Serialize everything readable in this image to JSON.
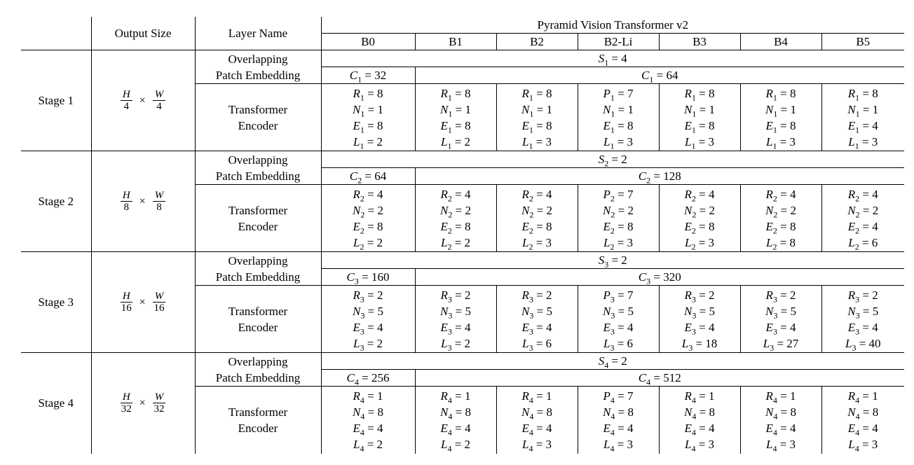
{
  "table": {
    "col_output_size": "Output Size",
    "col_layer_name": "Layer Name",
    "group_title": "Pyramid Vision Transformer v2",
    "models": [
      "B0",
      "B1",
      "B2",
      "B2-Li",
      "B3",
      "B4",
      "B5"
    ],
    "layer_names": {
      "patch": "Overlapping\nPatch Embedding",
      "encoder": "Transformer\nEncoder"
    },
    "stages": [
      {
        "label": "Stage 1",
        "output_size": {
          "num1": "H",
          "den1": "4",
          "op": "×",
          "num2": "W",
          "den2": "4"
        },
        "stride": "S_1 = 4",
        "channels_b0": "C_1 = 32",
        "channels_rest": "C_1 = 64",
        "encoders": [
          [
            "R_1 = 8",
            "N_1 = 1",
            "E_1 = 8",
            "L_1 = 2"
          ],
          [
            "R_1 = 8",
            "N_1 = 1",
            "E_1 = 8",
            "L_1 = 2"
          ],
          [
            "R_1 = 8",
            "N_1 = 1",
            "E_1 = 8",
            "L_1 = 3"
          ],
          [
            "P_1 = 7",
            "N_1 = 1",
            "E_1 = 8",
            "L_1 = 3"
          ],
          [
            "R_1 = 8",
            "N_1 = 1",
            "E_1 = 8",
            "L_1 = 3"
          ],
          [
            "R_1 = 8",
            "N_1 = 1",
            "E_1 = 8",
            "L_1 = 3"
          ],
          [
            "R_1 = 8",
            "N_1 = 1",
            "E_1 = 4",
            "L_1 = 3"
          ]
        ]
      },
      {
        "label": "Stage 2",
        "output_size": {
          "num1": "H",
          "den1": "8",
          "op": "×",
          "num2": "W",
          "den2": "8"
        },
        "stride": "S_2 = 2",
        "channels_b0": "C_2 = 64",
        "channels_rest": "C_2 = 128",
        "encoders": [
          [
            "R_2 = 4",
            "N_2 = 2",
            "E_2 = 8",
            "L_2 = 2"
          ],
          [
            "R_2 = 4",
            "N_2 = 2",
            "E_2 = 8",
            "L_2 = 2"
          ],
          [
            "R_2 = 4",
            "N_2 = 2",
            "E_2 = 8",
            "L_2 = 3"
          ],
          [
            "P_2 = 7",
            "N_2 = 2",
            "E_2 = 8",
            "L_2 = 3"
          ],
          [
            "R_2 = 4",
            "N_2 = 2",
            "E_2 = 8",
            "L_2 = 3"
          ],
          [
            "R_2 = 4",
            "N_2 = 2",
            "E_2 = 8",
            "L_2 = 8"
          ],
          [
            "R_2 = 4",
            "N_2 = 2",
            "E_2 = 4",
            "L_2 = 6"
          ]
        ]
      },
      {
        "label": "Stage 3",
        "output_size": {
          "num1": "H",
          "den1": "16",
          "op": "×",
          "num2": "W",
          "den2": "16"
        },
        "stride": "S_3 = 2",
        "channels_b0": "C_3 = 160",
        "channels_rest": "C_3 = 320",
        "encoders": [
          [
            "R_3 = 2",
            "N_3 = 5",
            "E_3 = 4",
            "L_3 = 2"
          ],
          [
            "R_3 = 2",
            "N_3 = 5",
            "E_3 = 4",
            "L_3 = 2"
          ],
          [
            "R_3 = 2",
            "N_3 = 5",
            "E_3 = 4",
            "L_3 = 6"
          ],
          [
            "P_3 = 7",
            "N_3 = 5",
            "E_3 = 4",
            "L_3 = 6"
          ],
          [
            "R_3 = 2",
            "N_3 = 5",
            "E_3 = 4",
            "L_3 = 18"
          ],
          [
            "R_3 = 2",
            "N_3 = 5",
            "E_3 = 4",
            "L_3 = 27"
          ],
          [
            "R_3 = 2",
            "N_3 = 5",
            "E_3 = 4",
            "L_3 = 40"
          ]
        ]
      },
      {
        "label": "Stage 4",
        "output_size": {
          "num1": "H",
          "den1": "32",
          "op": "×",
          "num2": "W",
          "den2": "32"
        },
        "stride": "S_4 = 2",
        "channels_b0": "C_4 = 256",
        "channels_rest": "C_4 = 512",
        "encoders": [
          [
            "R_4 = 1",
            "N_4 = 8",
            "E_4 = 4",
            "L_4 = 2"
          ],
          [
            "R_4 = 1",
            "N_4 = 8",
            "E_4 = 4",
            "L_4 = 2"
          ],
          [
            "R_4 = 1",
            "N_4 = 8",
            "E_4 = 4",
            "L_4 = 3"
          ],
          [
            "P_4 = 7",
            "N_4 = 8",
            "E_4 = 4",
            "L_4 = 3"
          ],
          [
            "R_4 = 1",
            "N_4 = 8",
            "E_4 = 4",
            "L_4 = 3"
          ],
          [
            "R_4 = 1",
            "N_4 = 8",
            "E_4 = 4",
            "L_4 = 3"
          ],
          [
            "R_4 = 1",
            "N_4 = 8",
            "E_4 = 4",
            "L_4 = 3"
          ]
        ]
      }
    ]
  }
}
